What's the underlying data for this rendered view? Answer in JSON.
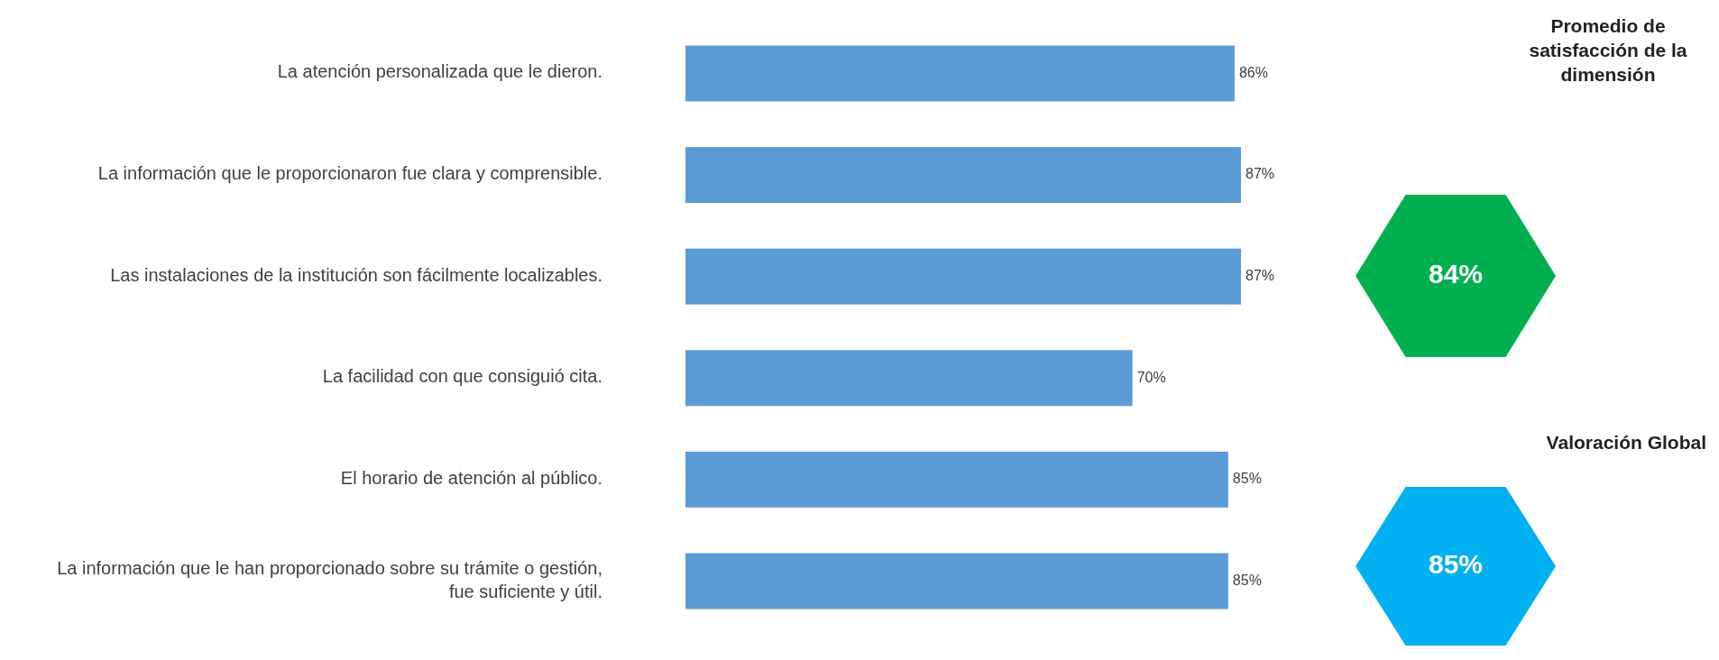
{
  "chart_data": {
    "type": "bar",
    "orientation": "horizontal",
    "categories": [
      "La atención personalizada que le dieron.",
      "La información que le proporcionaron fue clara y comprensible.",
      "Las instalaciones de la institución son fácilmente localizables.",
      "La facilidad con que consiguió cita.",
      "El horario de atención al público.",
      "La información que le han proporcionado sobre su trámite o gestión, fue suficiente y útil."
    ],
    "values": [
      86,
      87,
      87,
      70,
      85,
      85
    ],
    "value_labels": [
      "86%",
      "87%",
      "87%",
      "70%",
      "85%",
      "85%"
    ],
    "color": "#5b9bd5",
    "annotations": [
      "Promedio de satisfacción de la dimensión",
      "84%",
      "Valoración Global",
      "85%"
    ]
  }
}
